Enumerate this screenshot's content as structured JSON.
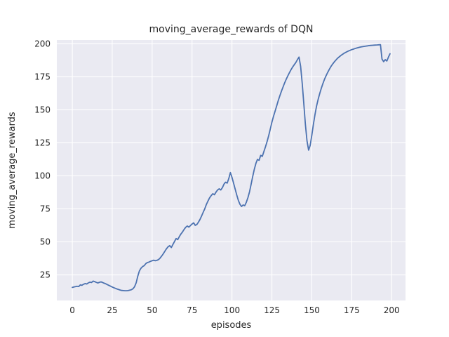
{
  "chart_data": {
    "type": "line",
    "title": "moving_average_rewards of DQN",
    "xlabel": "episodes",
    "ylabel": "moving_average_rewards",
    "xticks": [
      0,
      25,
      50,
      75,
      100,
      125,
      150,
      175,
      200
    ],
    "yticks": [
      25,
      50,
      75,
      100,
      125,
      150,
      175,
      200
    ],
    "xlim": [
      -9.7,
      208.7
    ],
    "ylim": [
      5.6,
      202.9
    ],
    "grid": true,
    "legend_position": "none",
    "series": [
      {
        "name": "moving_average_rewards",
        "x_start": 0,
        "x_step": 1,
        "values": [
          15.5,
          15.8,
          16.1,
          16.4,
          16.2,
          17.4,
          17.1,
          17.9,
          18.4,
          18.1,
          18.9,
          19.5,
          19.2,
          20.3,
          19.9,
          19.3,
          18.9,
          19.4,
          19.7,
          19.2,
          18.7,
          18.2,
          17.6,
          17.0,
          16.4,
          15.8,
          15.3,
          14.8,
          14.3,
          13.9,
          13.5,
          13.2,
          13.1,
          13.0,
          13.0,
          13.1,
          13.4,
          13.8,
          14.5,
          16.0,
          19.0,
          24.0,
          28.0,
          30.0,
          31.3,
          32.0,
          33.5,
          34.3,
          34.7,
          35.3,
          35.7,
          36.1,
          35.7,
          36.0,
          36.6,
          37.7,
          39.3,
          41.0,
          43.0,
          44.8,
          46.3,
          47.2,
          45.7,
          48.0,
          50.2,
          52.5,
          51.7,
          53.9,
          55.9,
          57.5,
          59.4,
          61.0,
          62.0,
          61.2,
          62.4,
          63.5,
          64.4,
          62.5,
          63.2,
          64.9,
          67.0,
          69.7,
          72.5,
          75.2,
          78.4,
          81.0,
          83.4,
          85.1,
          86.5,
          85.7,
          87.7,
          89.3,
          90.2,
          89.3,
          91.1,
          93.8,
          95.2,
          94.5,
          98.0,
          102.5,
          99.0,
          94.5,
          90.0,
          85.5,
          81.5,
          78.5,
          76.8,
          78.0,
          77.4,
          80.0,
          83.5,
          88.0,
          93.5,
          99.5,
          105.0,
          109.5,
          112.5,
          111.8,
          115.5,
          114.8,
          118.5,
          122.0,
          126.0,
          130.5,
          135.5,
          140.5,
          145.0,
          149.0,
          153.0,
          157.0,
          160.7,
          164.2,
          167.4,
          170.4,
          173.2,
          175.8,
          178.2,
          180.4,
          182.4,
          184.2,
          185.9,
          188.0,
          190.0,
          183.0,
          170.0,
          155.0,
          139.0,
          126.5,
          119.5,
          123.0,
          130.5,
          139.0,
          146.5,
          152.8,
          158.0,
          162.5,
          166.5,
          170.0,
          173.2,
          176.0,
          178.5,
          180.8,
          182.8,
          184.6,
          186.2,
          187.6,
          188.9,
          190.0,
          191.0,
          191.9,
          192.7,
          193.4,
          194.0,
          194.6,
          195.1,
          195.6,
          196.0,
          196.4,
          196.8,
          197.1,
          197.4,
          197.7,
          197.9,
          198.1,
          198.3,
          198.5,
          198.7,
          198.8,
          198.9,
          199.0,
          199.1,
          199.2,
          199.3,
          199.4,
          188.5,
          186.5,
          188.0,
          187.0,
          190.0,
          192.5
        ]
      }
    ]
  },
  "colors": {
    "figure_background": "#ffffff",
    "plot_background": "#eaeaf2",
    "grid": "#ffffff",
    "line": "#4c72b0",
    "text": "#262626"
  }
}
